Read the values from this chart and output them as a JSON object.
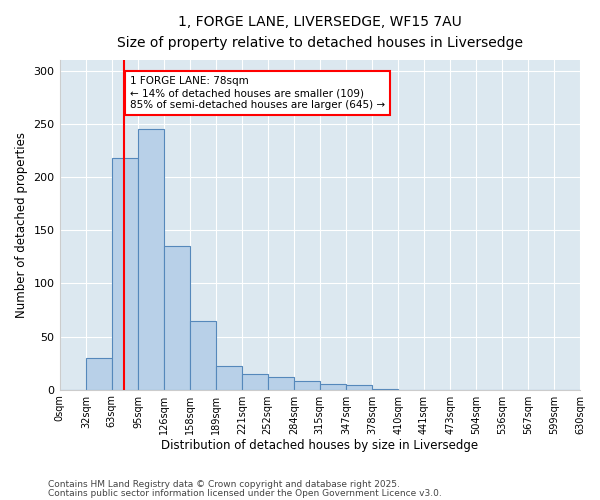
{
  "title_line1": "1, FORGE LANE, LIVERSEDGE, WF15 7AU",
  "title_line2": "Size of property relative to detached houses in Liversedge",
  "xlabel": "Distribution of detached houses by size in Liversedge",
  "ylabel": "Number of detached properties",
  "bar_color": "#b8d0e8",
  "bar_edge_color": "#5588bb",
  "plot_bg_color": "#dce8f0",
  "fig_bg_color": "#ffffff",
  "red_line_x": 78,
  "annotation_text": "1 FORGE LANE: 78sqm\n← 14% of detached houses are smaller (109)\n85% of semi-detached houses are larger (645) →",
  "categories": [
    "0sqm",
    "32sqm",
    "63sqm",
    "95sqm",
    "126sqm",
    "158sqm",
    "189sqm",
    "221sqm",
    "252sqm",
    "284sqm",
    "315sqm",
    "347sqm",
    "378sqm",
    "410sqm",
    "441sqm",
    "473sqm",
    "504sqm",
    "536sqm",
    "567sqm",
    "599sqm",
    "630sqm"
  ],
  "bin_edges": [
    0,
    32,
    63,
    95,
    126,
    158,
    189,
    221,
    252,
    284,
    315,
    347,
    378,
    410,
    441,
    473,
    504,
    536,
    567,
    599,
    630
  ],
  "values": [
    0,
    30,
    218,
    245,
    135,
    65,
    22,
    15,
    12,
    8,
    5,
    4,
    1,
    0,
    0,
    0,
    0,
    0,
    0,
    0,
    0
  ],
  "ylim": [
    0,
    310
  ],
  "yticks": [
    0,
    50,
    100,
    150,
    200,
    250,
    300
  ],
  "footnote1": "Contains HM Land Registry data © Crown copyright and database right 2025.",
  "footnote2": "Contains public sector information licensed under the Open Government Licence v3.0."
}
